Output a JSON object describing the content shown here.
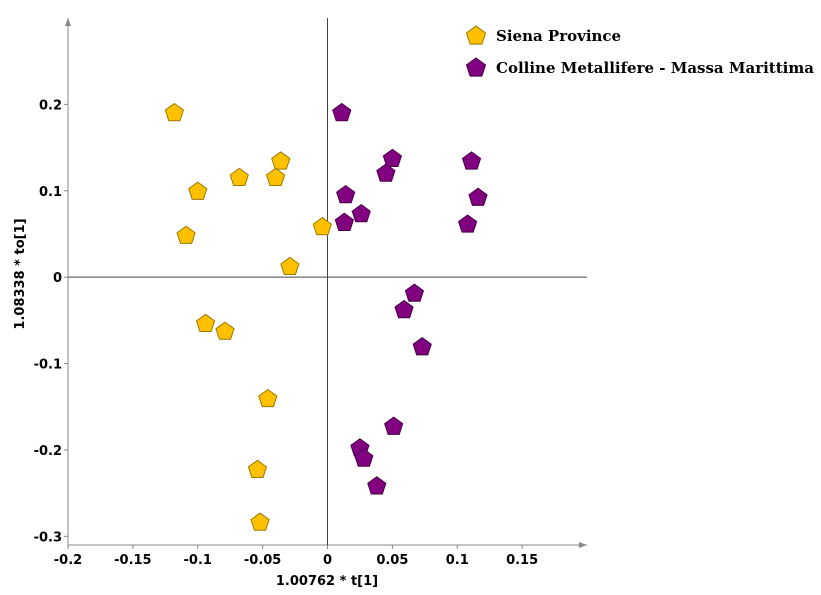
{
  "chart_data": {
    "type": "scatter",
    "xlabel": "1.00762 * t[1]",
    "ylabel": "1.08338 * to[1]",
    "xlim": [
      -0.2,
      0.2
    ],
    "ylim": [
      -0.31,
      0.3
    ],
    "x_ticks": [
      -0.2,
      -0.15,
      -0.1,
      -0.05,
      0,
      0.05,
      0.1,
      0.15
    ],
    "x_tick_labels": [
      "-0.2",
      "-0.15",
      "-0.1",
      "-0.05",
      "0",
      "0.05",
      "0.1",
      "0.15"
    ],
    "y_ticks": [
      -0.3,
      -0.2,
      -0.1,
      0,
      0.1,
      0.2
    ],
    "y_tick_labels": [
      "-0.3",
      "-0.2",
      "-0.1",
      "0",
      "0.1",
      "0.2"
    ],
    "grid": false,
    "zero_lines": true,
    "legend_position": "top-right",
    "marker": "pentagon",
    "series": [
      {
        "name": "Siena Province",
        "color": "#FFC000",
        "stroke": "#9A7A00",
        "points": [
          {
            "x": -0.118,
            "y": 0.19
          },
          {
            "x": -0.036,
            "y": 0.134
          },
          {
            "x": -0.068,
            "y": 0.115
          },
          {
            "x": -0.04,
            "y": 0.115
          },
          {
            "x": -0.1,
            "y": 0.099
          },
          {
            "x": -0.004,
            "y": 0.058
          },
          {
            "x": -0.109,
            "y": 0.048
          },
          {
            "x": -0.029,
            "y": 0.012
          },
          {
            "x": -0.094,
            "y": -0.054
          },
          {
            "x": -0.079,
            "y": -0.063
          },
          {
            "x": -0.046,
            "y": -0.141
          },
          {
            "x": -0.054,
            "y": -0.223
          },
          {
            "x": -0.052,
            "y": -0.284
          }
        ]
      },
      {
        "name": "Colline Metallifere - Massa Marittima",
        "color": "#800080",
        "stroke": "#4A004A",
        "points": [
          {
            "x": 0.011,
            "y": 0.19
          },
          {
            "x": 0.05,
            "y": 0.137
          },
          {
            "x": 0.111,
            "y": 0.134
          },
          {
            "x": 0.045,
            "y": 0.12
          },
          {
            "x": 0.014,
            "y": 0.095
          },
          {
            "x": 0.116,
            "y": 0.092
          },
          {
            "x": 0.026,
            "y": 0.073
          },
          {
            "x": 0.013,
            "y": 0.063
          },
          {
            "x": 0.108,
            "y": 0.061
          },
          {
            "x": 0.067,
            "y": -0.019
          },
          {
            "x": 0.059,
            "y": -0.038
          },
          {
            "x": 0.073,
            "y": -0.081
          },
          {
            "x": 0.051,
            "y": -0.173
          },
          {
            "x": 0.025,
            "y": -0.198
          },
          {
            "x": 0.028,
            "y": -0.21
          },
          {
            "x": 0.038,
            "y": -0.242
          }
        ]
      }
    ]
  }
}
